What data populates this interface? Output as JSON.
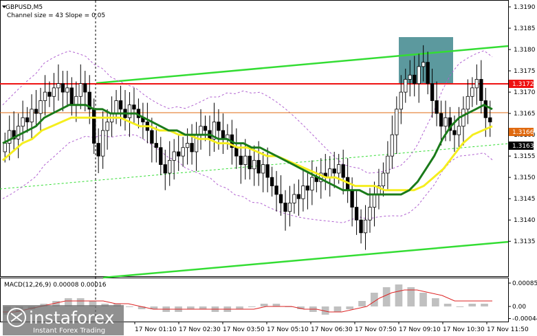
{
  "header": {
    "symbol": "GBPUSD,M5",
    "channel_info": "Channel size = 43 Slope = 0.05"
  },
  "macd_header": "MACD(12,26,9) 0.00008 0.00016",
  "watermark": {
    "brand": "instaforex",
    "tagline": "Instant Forex Trading"
  },
  "price_labels": {
    "resistance": "1.3172",
    "ma_level": "1.3166",
    "current": "1.3163"
  },
  "chart_data": [
    {
      "type": "candlestick",
      "title": "GBPUSD,M5",
      "ylim": [
        1.313,
        1.319
      ],
      "y_ticks": [
        "1.3190",
        "1.3185",
        "1.3180",
        "1.3175",
        "1.3170",
        "1.3165",
        "1.3160",
        "1.3155",
        "1.3150",
        "1.3145",
        "1.3140",
        "1.3135"
      ],
      "x_ticks": [
        "17 Nov 01:10",
        "17 Nov 02:30",
        "17 Nov 03:50",
        "17 Nov 05:10",
        "17 Nov 06:30",
        "17 Nov 07:50",
        "17 Nov 09:10",
        "17 Nov 10:30",
        "17 Nov 11:50"
      ],
      "close": [
        1.3158,
        1.3161,
        1.3159,
        1.3162,
        1.3164,
        1.3163,
        1.3166,
        1.3165,
        1.3168,
        1.317,
        1.3169,
        1.3171,
        1.3172,
        1.317,
        1.3171,
        1.3167,
        1.3169,
        1.3172,
        1.317,
        1.3166,
        1.3158,
        1.3155,
        1.3161,
        1.3163,
        1.3165,
        1.3168,
        1.3166,
        1.3164,
        1.3167,
        1.3166,
        1.3164,
        1.3163,
        1.3161,
        1.3158,
        1.3157,
        1.3153,
        1.3151,
        1.3154,
        1.3156,
        1.3155,
        1.3157,
        1.3158,
        1.3156,
        1.316,
        1.3162,
        1.3161,
        1.3159,
        1.3163,
        1.3161,
        1.3159,
        1.316,
        1.3157,
        1.3155,
        1.3153,
        1.3155,
        1.3152,
        1.3154,
        1.3151,
        1.3153,
        1.315,
        1.3148,
        1.3146,
        1.3144,
        1.3142,
        1.3144,
        1.3146,
        1.3145,
        1.3148,
        1.3147,
        1.315,
        1.3149,
        1.3151,
        1.315,
        1.3152,
        1.3151,
        1.3153,
        1.315,
        1.3147,
        1.3143,
        1.314,
        1.3137,
        1.314,
        1.3143,
        1.3146,
        1.3148,
        1.3151,
        1.3155,
        1.316,
        1.3166,
        1.317,
        1.3173,
        1.3174,
        1.3172,
        1.3176,
        1.3177,
        1.3172,
        1.3168,
        1.3165,
        1.3162,
        1.3164,
        1.3161,
        1.316,
        1.3162,
        1.3166,
        1.3169,
        1.3171,
        1.3173,
        1.3168,
        1.3164,
        1.3163
      ],
      "series": [
        {
          "name": "MA green",
          "color": "#1a7a1a"
        },
        {
          "name": "MA yellow",
          "color": "#f5ee1e"
        }
      ],
      "ma_green": [
        1.3158,
        1.3159,
        1.316,
        1.3161,
        1.3162,
        1.3164,
        1.3165,
        1.3166,
        1.3167,
        1.3167,
        1.3167,
        1.3166,
        1.3166,
        1.3165,
        1.3165,
        1.3165,
        1.3165,
        1.3164,
        1.3163,
        1.3162,
        1.3161,
        1.3161,
        1.316,
        1.316,
        1.316,
        1.316,
        1.3159,
        1.3159,
        1.3158,
        1.3158,
        1.3157,
        1.3157,
        1.3156,
        1.3155,
        1.3154,
        1.3153,
        1.3152,
        1.3151,
        1.315,
        1.3149,
        1.3148,
        1.3147,
        1.3147,
        1.3147,
        1.3146,
        1.3146,
        1.3146,
        1.3146,
        1.3146,
        1.3147,
        1.3149,
        1.3152,
        1.3155,
        1.3159,
        1.3162,
        1.3164,
        1.3165,
        1.3166,
        1.3167,
        1.3166
      ],
      "ma_yellow": [
        1.3154,
        1.3156,
        1.3158,
        1.3159,
        1.3161,
        1.3162,
        1.3163,
        1.3164,
        1.3164,
        1.3164,
        1.3164,
        1.3164,
        1.3164,
        1.3163,
        1.3162,
        1.3162,
        1.3161,
        1.3161,
        1.316,
        1.316,
        1.3159,
        1.3159,
        1.3158,
        1.3158,
        1.3157,
        1.3157,
        1.3156,
        1.3155,
        1.3155,
        1.3154,
        1.3153,
        1.3152,
        1.3151,
        1.315,
        1.315,
        1.3149,
        1.3148,
        1.3148,
        1.3148,
        1.3147,
        1.3147,
        1.3147,
        1.3147,
        1.3148,
        1.315,
        1.3152,
        1.3155,
        1.3158,
        1.316,
        1.3161,
        1.3162
      ],
      "annotations": [
        "Resistance line 1.3172",
        "Price channel (upper and lower lines)",
        "Highlighted zone around 1.3177"
      ]
    },
    {
      "type": "bar",
      "title": "MACD(12,26,9) 0.00008 0.00016",
      "y_ticks": [
        "0.00085",
        "0.00",
        "-0.00044"
      ],
      "ylim": [
        -0.0005,
        0.0009
      ],
      "values": [
        -0.0003,
        -0.0002,
        -0.0001,
        0.0001,
        0.0002,
        0.0003,
        0.0003,
        0.0002,
        0.0001,
        0.0001,
        0.0,
        -0.0001,
        -0.0001,
        -0.0002,
        -0.0002,
        -0.0001,
        -0.0001,
        -0.0002,
        -0.0002,
        -0.0001,
        0.0,
        0.0001,
        0.0001,
        0.0,
        -0.0001,
        -0.0002,
        -0.0003,
        -0.0002,
        -0.0001,
        0.0002,
        0.0005,
        0.0007,
        0.0008,
        0.0007,
        0.0005,
        0.0003,
        0.0001,
        0.0,
        0.0001,
        0.0001
      ],
      "signal": [
        -0.0002,
        -0.0002,
        -0.0001,
        0.0,
        0.0001,
        0.0002,
        0.0002,
        0.0002,
        0.0002,
        0.0001,
        0.0001,
        0.0,
        -0.0001,
        -0.0001,
        -0.0001,
        -0.0001,
        -0.0001,
        -0.0001,
        -0.0001,
        -0.0001,
        -0.0001,
        0.0,
        0.0,
        0.0,
        -0.0001,
        -0.0001,
        -0.0002,
        -0.0002,
        -0.0001,
        0.0,
        0.0003,
        0.0005,
        0.0006,
        0.0006,
        0.0005,
        0.0004,
        0.0002,
        0.0002,
        0.0002,
        0.0002
      ]
    }
  ]
}
